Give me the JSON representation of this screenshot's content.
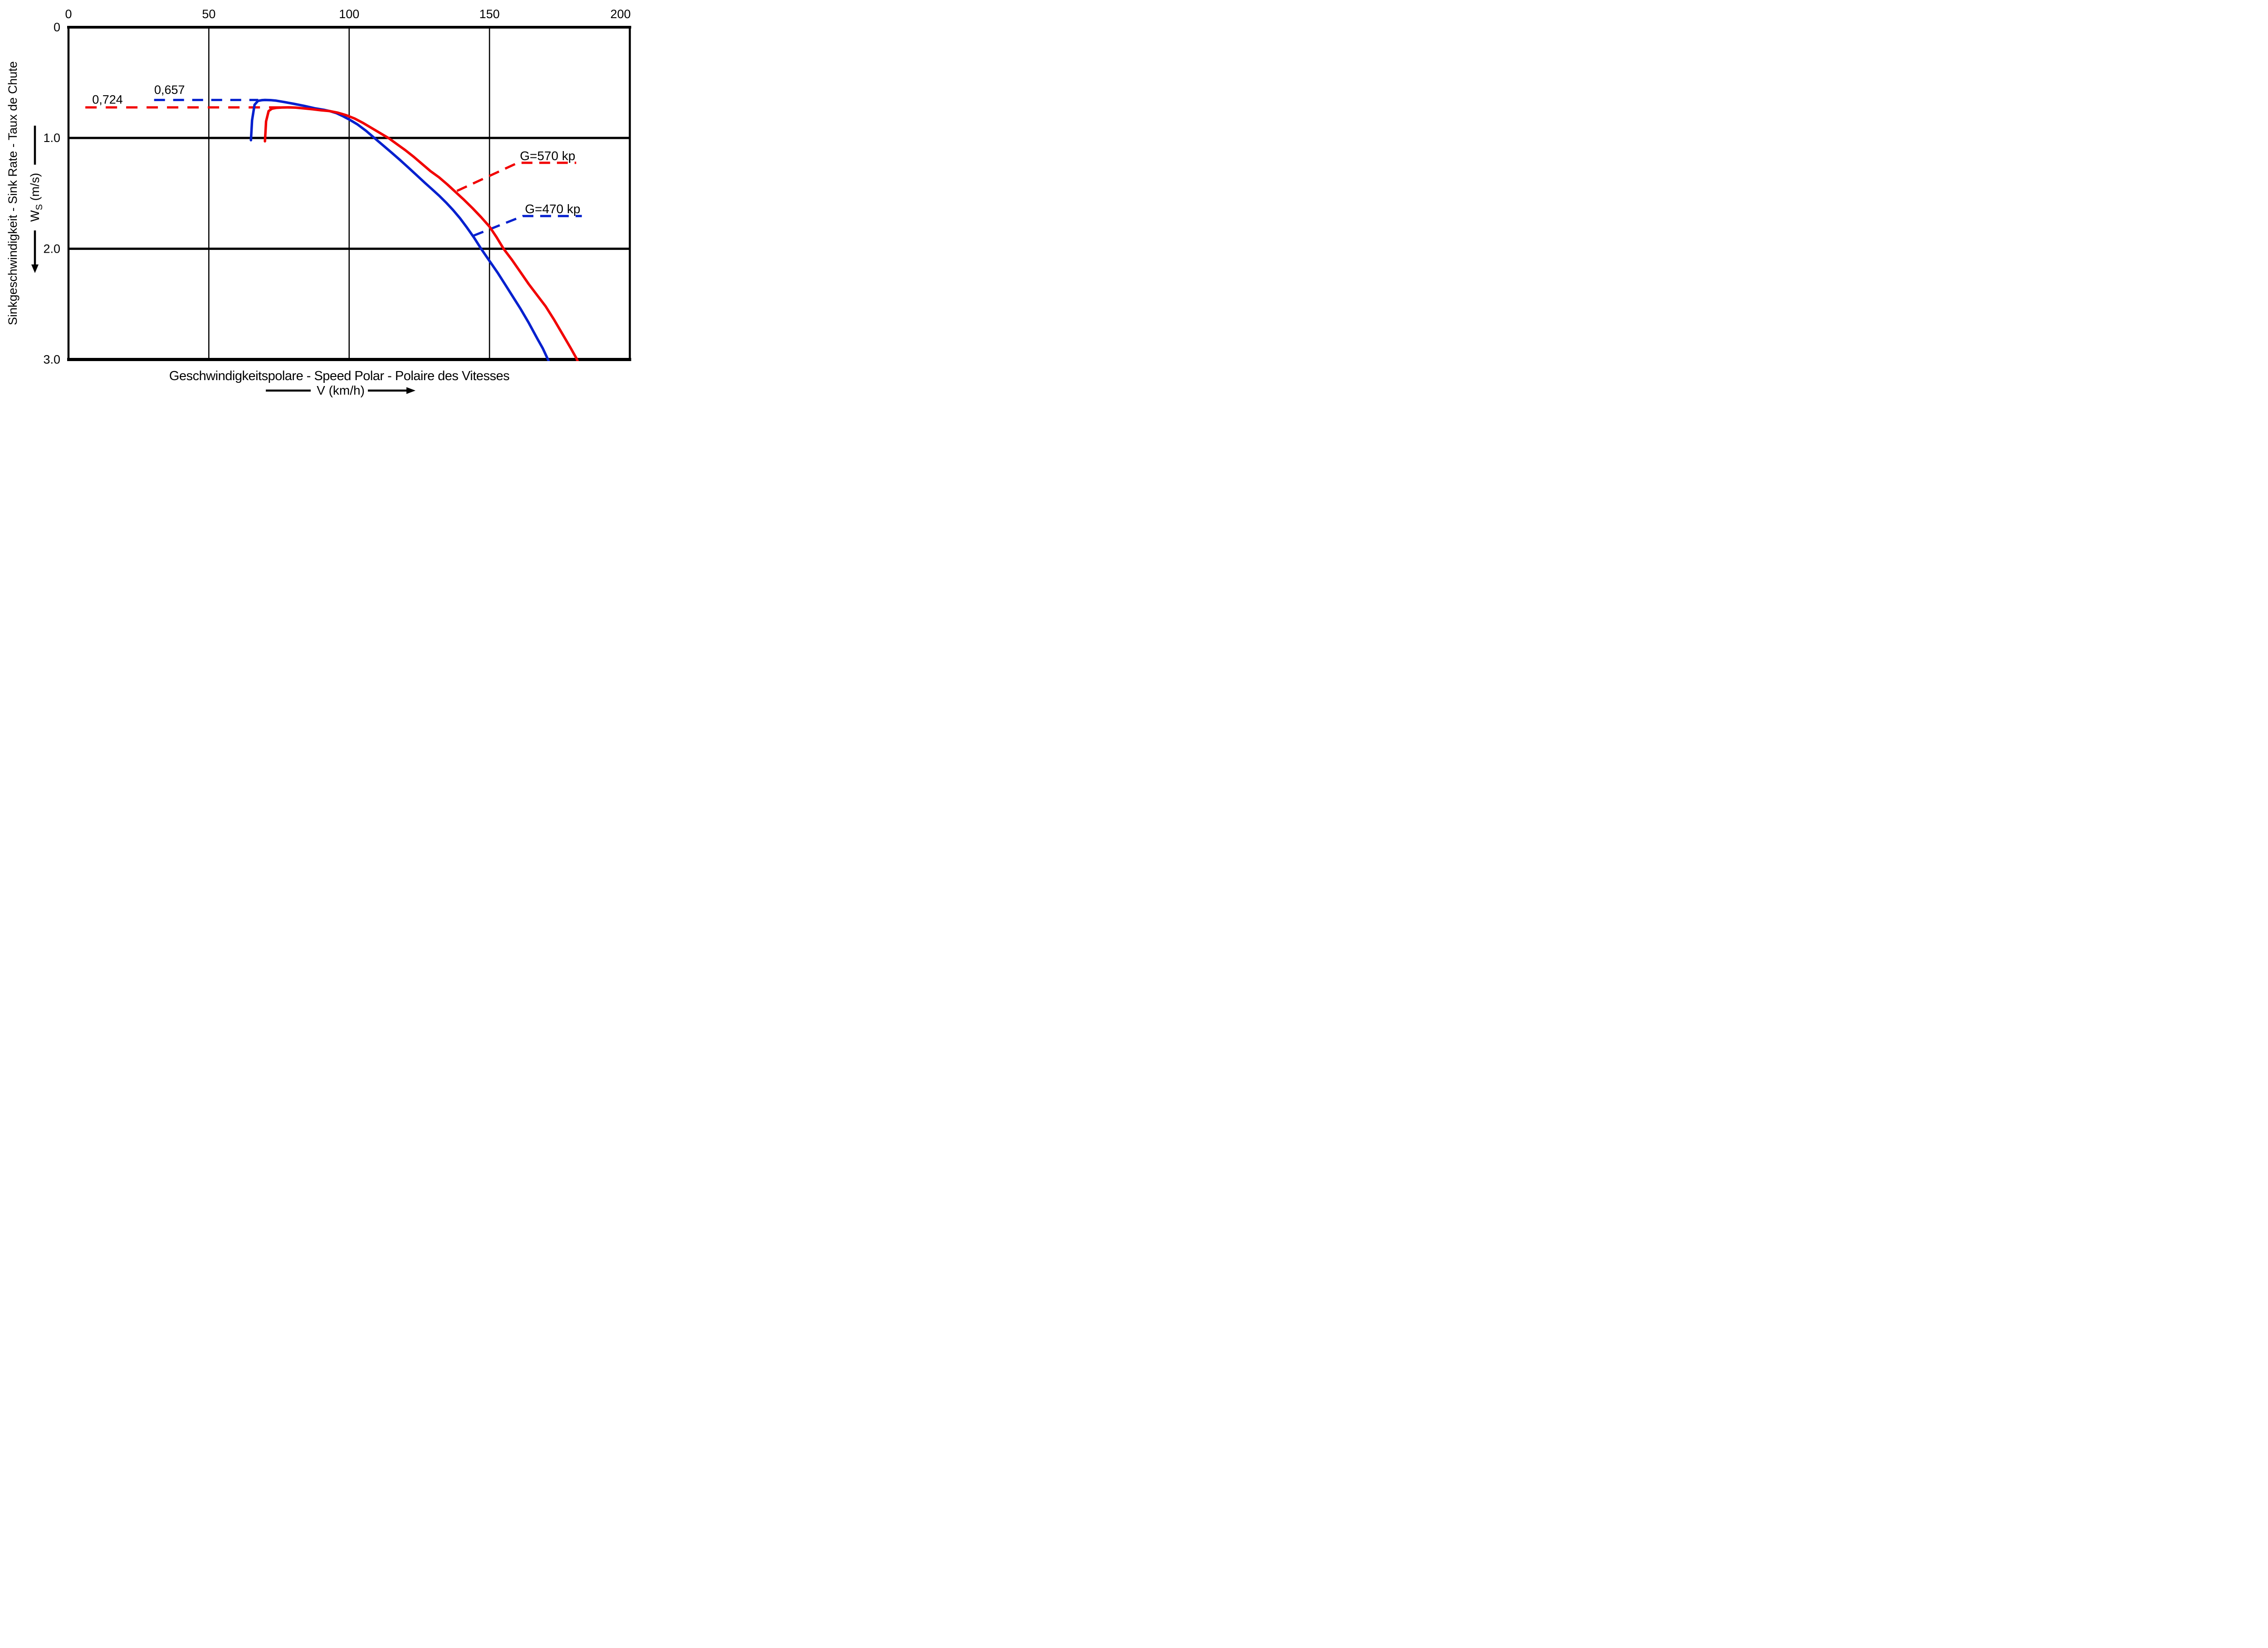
{
  "page": {
    "background": "#ffffff"
  },
  "colors": {
    "blue": "#0520CE",
    "red": "#F10000",
    "axis": "#000000"
  },
  "chart_data": {
    "type": "line",
    "title": "Geschwindigkeitspolare - Speed Polar - Polaire des Vitesses",
    "x_axis": {
      "label": "V (km/h)",
      "position": "top",
      "range": [
        0,
        200
      ],
      "ticks": [
        0,
        50,
        100,
        150,
        200
      ],
      "tick_labels": [
        "0",
        "50",
        "100",
        "150",
        "200"
      ],
      "gridlines": [
        50,
        100,
        150
      ]
    },
    "y_axis": {
      "label": "Sinkgeschwindigkeit - Sink Rate - Taux de Chute",
      "symbol": {
        "base": "W",
        "subscript": "S",
        "unit": " (m/s)"
      },
      "direction": "down",
      "range": [
        0,
        3
      ],
      "ticks": [
        0,
        1,
        2,
        3
      ],
      "tick_labels": [
        "0",
        "1.0",
        "2.0",
        "3.0"
      ],
      "gridlines": [
        1,
        2
      ]
    },
    "grid": true,
    "legend_position": "none",
    "series": [
      {
        "name": "G=470 kp",
        "color": "#0520CE",
        "min_sink": 0.657,
        "points": [
          [
            65,
            1.02
          ],
          [
            65.4,
            0.84
          ],
          [
            66.3,
            0.7
          ],
          [
            67.5,
            0.665
          ],
          [
            69,
            0.658
          ],
          [
            70,
            0.657
          ],
          [
            72,
            0.658
          ],
          [
            74,
            0.663
          ],
          [
            77,
            0.676
          ],
          [
            80,
            0.69
          ],
          [
            84,
            0.71
          ],
          [
            88,
            0.733
          ],
          [
            91,
            0.746
          ],
          [
            93,
            0.757
          ],
          [
            95.5,
            0.776
          ],
          [
            98,
            0.806
          ],
          [
            100.5,
            0.84
          ],
          [
            103,
            0.878
          ],
          [
            106,
            0.935
          ],
          [
            109,
            1.0
          ],
          [
            112,
            1.065
          ],
          [
            115,
            1.13
          ],
          [
            118,
            1.196
          ],
          [
            121,
            1.265
          ],
          [
            124,
            1.335
          ],
          [
            127,
            1.405
          ],
          [
            129.5,
            1.462
          ],
          [
            132,
            1.52
          ],
          [
            134.5,
            1.582
          ],
          [
            137,
            1.65
          ],
          [
            139.5,
            1.725
          ],
          [
            142,
            1.81
          ],
          [
            144.5,
            1.9
          ],
          [
            147,
            2.0
          ],
          [
            150,
            2.11
          ],
          [
            153,
            2.22
          ],
          [
            156,
            2.34
          ],
          [
            159,
            2.46
          ],
          [
            161,
            2.54
          ],
          [
            164,
            2.67
          ],
          [
            167,
            2.81
          ],
          [
            169,
            2.9
          ],
          [
            171,
            3.01
          ]
        ]
      },
      {
        "name": "G=570 kp",
        "color": "#F10000",
        "min_sink": 0.724,
        "points": [
          [
            70,
            1.03
          ],
          [
            70.4,
            0.85
          ],
          [
            71.3,
            0.757
          ],
          [
            72.5,
            0.735
          ],
          [
            74,
            0.728
          ],
          [
            76,
            0.725
          ],
          [
            78.5,
            0.724
          ],
          [
            81,
            0.726
          ],
          [
            84,
            0.733
          ],
          [
            87,
            0.741
          ],
          [
            90,
            0.75
          ],
          [
            93,
            0.757
          ],
          [
            96,
            0.772
          ],
          [
            99,
            0.795
          ],
          [
            102,
            0.825
          ],
          [
            105,
            0.865
          ],
          [
            108,
            0.91
          ],
          [
            111,
            0.955
          ],
          [
            114,
            1.0
          ],
          [
            117,
            1.055
          ],
          [
            120,
            1.11
          ],
          [
            123,
            1.17
          ],
          [
            126,
            1.235
          ],
          [
            129,
            1.3
          ],
          [
            132,
            1.355
          ],
          [
            135,
            1.42
          ],
          [
            138,
            1.49
          ],
          [
            141,
            1.56
          ],
          [
            144,
            1.635
          ],
          [
            147,
            1.715
          ],
          [
            150,
            1.8
          ],
          [
            152.5,
            1.895
          ],
          [
            155,
            2.0
          ],
          [
            158,
            2.1
          ],
          [
            161,
            2.21
          ],
          [
            164,
            2.32
          ],
          [
            167,
            2.42
          ],
          [
            170,
            2.52
          ],
          [
            173,
            2.64
          ],
          [
            176,
            2.77
          ],
          [
            179,
            2.9
          ],
          [
            181,
            2.99
          ],
          [
            182.3,
            3.07
          ]
        ]
      }
    ],
    "annotations": {
      "min_sink_blue": {
        "label": "0,657",
        "value": 0.657,
        "color": "#0520CE",
        "line": {
          "from_v": 30.5,
          "to_v": 67.6
        },
        "label_anchor": {
          "v": 36,
          "ws": 0.602
        }
      },
      "min_sink_red": {
        "label": "0,724",
        "value": 0.724,
        "color": "#F10000",
        "line": {
          "from_v": 6,
          "to_v": 75.6
        },
        "label_anchor": {
          "v": 13.9,
          "ws": 0.69
        }
      },
      "weight_570": {
        "label": "G=570 kp",
        "color": "#F10000",
        "label_anchor": {
          "v": 170.7,
          "ws": 1.2
        },
        "leader": [
          [
            138.4,
            1.478
          ],
          [
            160.1,
            1.224
          ],
          [
            180.9,
            1.224
          ]
        ]
      },
      "weight_470": {
        "label": "G=470 kp",
        "color": "#0520CE",
        "label_anchor": {
          "v": 172.5,
          "ws": 1.68
        },
        "leader": [
          [
            144.2,
            1.883
          ],
          [
            161.9,
            1.705
          ],
          [
            182.9,
            1.705
          ]
        ]
      }
    }
  }
}
